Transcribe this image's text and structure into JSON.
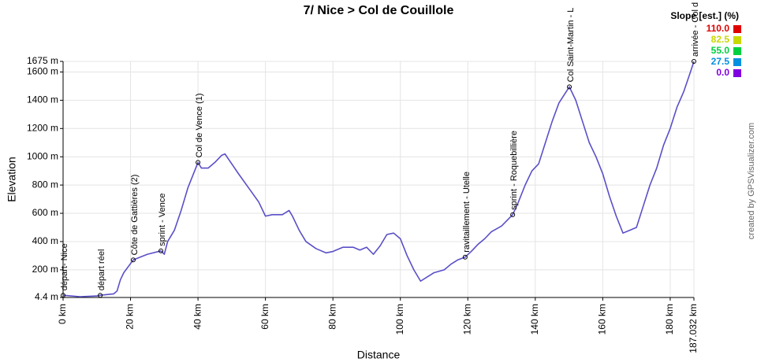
{
  "chart_data": {
    "type": "line",
    "title": "7/ Nice > Col de Couillole",
    "x_label": "Distance",
    "y_label": "Elevation",
    "credit": "created by GPSVisualizer.com",
    "color": "#5a4fc8",
    "x": [
      0,
      5,
      10,
      11,
      15,
      16,
      17,
      18,
      20.8,
      25,
      29,
      30,
      31,
      33,
      35,
      37,
      40,
      41,
      43,
      45,
      47,
      48,
      50,
      52,
      55,
      58,
      60,
      62,
      65,
      67,
      68,
      70,
      72,
      75,
      78,
      80,
      83,
      86,
      88,
      90,
      92,
      94,
      96,
      98,
      100,
      102,
      104,
      106,
      108,
      110,
      113,
      115,
      117,
      119.2,
      121,
      123,
      125,
      127,
      130,
      133.3,
      135,
      137,
      139,
      141,
      143,
      145,
      147,
      150.1,
      152,
      154,
      156,
      158,
      160,
      162,
      164,
      166,
      168,
      170,
      172,
      174,
      176,
      178,
      180,
      182,
      184,
      186,
      187.032
    ],
    "values": [
      20,
      10,
      15,
      20,
      30,
      50,
      130,
      180,
      270,
      310,
      334,
      310,
      400,
      480,
      620,
      780,
      960,
      920,
      920,
      960,
      1010,
      1020,
      950,
      880,
      780,
      680,
      580,
      590,
      590,
      620,
      580,
      480,
      400,
      350,
      320,
      330,
      360,
      360,
      340,
      360,
      310,
      370,
      450,
      460,
      420,
      300,
      200,
      120,
      150,
      180,
      200,
      240,
      270,
      290,
      330,
      380,
      420,
      470,
      510,
      590,
      680,
      800,
      900,
      950,
      1100,
      1250,
      1380,
      1495,
      1400,
      1250,
      1100,
      1000,
      880,
      720,
      580,
      460,
      480,
      500,
      650,
      800,
      920,
      1080,
      1200,
      1350,
      1460,
      1600,
      1675
    ],
    "xlim": [
      0,
      187.032
    ],
    "ylim": [
      4.4,
      1675
    ],
    "xticks": [
      {
        "value": 0,
        "label": "0 km"
      },
      {
        "value": 20,
        "label": "20 km"
      },
      {
        "value": 40,
        "label": "40 km"
      },
      {
        "value": 60,
        "label": "60 km"
      },
      {
        "value": 80,
        "label": "80 km"
      },
      {
        "value": 100,
        "label": "100 km"
      },
      {
        "value": 120,
        "label": "120 km"
      },
      {
        "value": 140,
        "label": "140 km"
      },
      {
        "value": 160,
        "label": "160 km"
      },
      {
        "value": 180,
        "label": "180 km"
      },
      {
        "value": 187.032,
        "label": "187.032 km"
      }
    ],
    "yticks": [
      {
        "value": 4.4,
        "label": "4.4 m"
      },
      {
        "value": 200,
        "label": "200 m"
      },
      {
        "value": 400,
        "label": "400 m"
      },
      {
        "value": 600,
        "label": "600 m"
      },
      {
        "value": 800,
        "label": "800 m"
      },
      {
        "value": 1000,
        "label": "1000 m"
      },
      {
        "value": 1200,
        "label": "1200 m"
      },
      {
        "value": 1400,
        "label": "1400 m"
      },
      {
        "value": 1600,
        "label": "1600 m"
      },
      {
        "value": 1675,
        "label": "1675 m"
      }
    ],
    "grid": true,
    "waypoints": [
      {
        "label": "départ- Nice",
        "x": 0,
        "y": 20
      },
      {
        "label": "départ réel",
        "x": 11,
        "y": 20
      },
      {
        "label": "Côte de Gattières (2)",
        "x": 20.8,
        "y": 270
      },
      {
        "label": "sprint - Vence",
        "x": 29,
        "y": 334
      },
      {
        "label": "Col de Vence (1)",
        "x": 40,
        "y": 960
      },
      {
        "label": "ravitaillement - Utelle",
        "x": 119.2,
        "y": 290
      },
      {
        "label": "sprint - Roquebillière",
        "x": 133.3,
        "y": 590
      },
      {
        "label": "Col Saint-Martin - L",
        "x": 150.1,
        "y": 1495
      },
      {
        "label": "arrivée - Col d",
        "x": 187.032,
        "y": 1675
      }
    ],
    "slope_legend": {
      "title": "Slope [est.] (%)",
      "values": [
        110,
        82.5,
        55,
        27.5,
        0
      ],
      "value_labels": [
        "110.0",
        "82.5",
        "55.0",
        "27.5",
        "0.0"
      ],
      "colors": [
        "#e00000",
        "#c8d800",
        "#00d040",
        "#0090e0",
        "#8000e0"
      ]
    }
  }
}
